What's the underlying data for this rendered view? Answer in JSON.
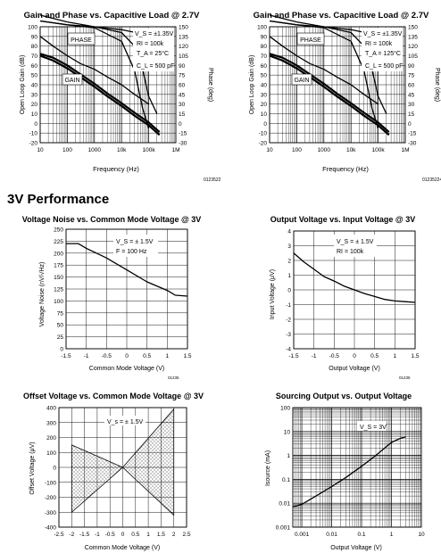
{
  "section_heading": "3V Performance",
  "chart_data": [
    {
      "type": "line",
      "title": "Gain and Phase vs. Capacitive Load @ 2.7V",
      "xlabel": "Frequency (Hz)",
      "ylabel": "Open Loop Gain (dB)",
      "y2label": "Phase (deg)",
      "xscale": "log",
      "xlim": [
        10,
        1000000
      ],
      "ylim": [
        -20,
        100
      ],
      "y2lim": [
        -30,
        150
      ],
      "x_ticks": [
        "10",
        "100",
        "1000",
        "10k",
        "100k",
        "1M"
      ],
      "y_ticks": [
        "100",
        "90",
        "80",
        "70",
        "60",
        "50",
        "40",
        "30",
        "20",
        "10",
        "0",
        "-10",
        "-20"
      ],
      "y2_ticks": [
        "150",
        "135",
        "120",
        "105",
        "90",
        "75",
        "60",
        "45",
        "30",
        "15",
        "0",
        "-15",
        "-30"
      ],
      "annotations": [
        "PHASE",
        "GAIN",
        "V_S = ±1.35V",
        "RI = 100k",
        "T_A = 25°C",
        "C_L = 500 pF"
      ],
      "figure_id": "01235223",
      "series": [
        {
          "x": [
            10,
            30,
            100,
            300,
            1000,
            3000,
            10000,
            30000,
            100000,
            250000
          ],
          "values": [
            72,
            68,
            60,
            51,
            41,
            31,
            21,
            11,
            1,
            -9
          ]
        },
        {
          "x": [
            10,
            30,
            100,
            300,
            1000,
            3000,
            10000,
            30000,
            100000,
            250000
          ],
          "values": [
            70,
            65,
            57,
            48,
            38,
            28,
            18,
            8,
            -2,
            -12
          ]
        },
        {
          "x": [
            10,
            30,
            100,
            300,
            1000,
            3000,
            10000,
            30000,
            100000
          ],
          "values": [
            90,
            80,
            70,
            62,
            56,
            48,
            40,
            30,
            20
          ]
        },
        {
          "x": [
            10,
            100,
            1000,
            10000,
            30000,
            60000,
            100000,
            200000
          ],
          "values": [
            106,
            102,
            100,
            94,
            80,
            55,
            28,
            10
          ]
        },
        {
          "x": [
            10,
            100,
            1000,
            10000,
            30000,
            60000,
            100000
          ],
          "values": [
            106,
            102,
            99,
            85,
            55,
            15,
            -5
          ]
        },
        {
          "x": [
            10,
            100,
            1000,
            10000,
            50000,
            100000,
            300000
          ],
          "values": [
            112,
            105,
            100,
            97,
            93,
            85,
            60
          ]
        }
      ]
    },
    {
      "type": "line",
      "title": "Gain and Phase vs. Capacitive Load @ 2.7V",
      "xlabel": "Frequency (Hz)",
      "ylabel": "Open Loop Gain (dB)",
      "y2label": "Phase (deg)",
      "xscale": "log",
      "xlim": [
        10,
        1000000
      ],
      "ylim": [
        -20,
        100
      ],
      "y2lim": [
        -30,
        150
      ],
      "x_ticks": [
        "10",
        "100",
        "1000",
        "10k",
        "100k",
        "1M"
      ],
      "y_ticks": [
        "100",
        "90",
        "80",
        "70",
        "60",
        "50",
        "40",
        "30",
        "20",
        "10",
        "0",
        "-10",
        "-20"
      ],
      "y2_ticks": [
        "150",
        "135",
        "120",
        "105",
        "90",
        "75",
        "60",
        "45",
        "30",
        "15",
        "0",
        "-15",
        "-30"
      ],
      "annotations": [
        "PHASE",
        "GAIN",
        "V_S = ±1.35V",
        "RI = 100k",
        "T_A = 125°C",
        "C_L = 500 pF"
      ],
      "figure_id": "01235224",
      "series": [
        {
          "x": [
            10,
            30,
            100,
            300,
            1000,
            3000,
            10000,
            30000,
            100000,
            250000
          ],
          "values": [
            72,
            68,
            60,
            51,
            41,
            31,
            21,
            11,
            1,
            -9
          ]
        },
        {
          "x": [
            10,
            30,
            100,
            300,
            1000,
            3000,
            10000,
            30000,
            100000,
            250000
          ],
          "values": [
            70,
            65,
            57,
            48,
            38,
            28,
            18,
            8,
            -2,
            -12
          ]
        },
        {
          "x": [
            10,
            30,
            100,
            300,
            1000,
            3000,
            10000,
            30000,
            100000
          ],
          "values": [
            90,
            80,
            70,
            62,
            56,
            48,
            40,
            30,
            20
          ]
        },
        {
          "x": [
            10,
            100,
            1000,
            10000,
            30000,
            60000,
            100000,
            200000
          ],
          "values": [
            106,
            102,
            100,
            94,
            80,
            55,
            28,
            10
          ]
        },
        {
          "x": [
            10,
            100,
            1000,
            10000,
            30000,
            60000,
            100000
          ],
          "values": [
            106,
            102,
            99,
            85,
            55,
            15,
            -5
          ]
        },
        {
          "x": [
            10,
            100,
            1000,
            10000,
            50000,
            100000,
            300000
          ],
          "values": [
            112,
            105,
            100,
            97,
            93,
            85,
            60
          ]
        }
      ]
    },
    {
      "type": "line",
      "title": "Voltage Noise vs. Common Mode Voltage @ 3V",
      "xlabel": "Common Mode Voltage (V)",
      "ylabel": "Voltage Noise (nV/√Hz)",
      "xlim": [
        -1.5,
        1.5
      ],
      "ylim": [
        0,
        250
      ],
      "x_ticks": [
        "-1.5",
        "-1",
        "-0.5",
        "0",
        "0.5",
        "1",
        "1.5"
      ],
      "y_ticks": [
        "250",
        "225",
        "200",
        "175",
        "150",
        "125",
        "100",
        "75",
        "50",
        "25",
        "0"
      ],
      "annotations": [
        "V_S = ± 1.5V",
        "F = 100 Hz"
      ],
      "figure_id": "01235",
      "series": [
        {
          "x": [
            -1.5,
            -1.2,
            -1.0,
            -0.5,
            0,
            0.5,
            1.0,
            1.2,
            1.5
          ],
          "values": [
            220,
            220,
            210,
            190,
            165,
            140,
            122,
            112,
            110
          ]
        }
      ]
    },
    {
      "type": "line",
      "title": "Output Voltage vs. Input Voltage @ 3V",
      "xlabel": "Output Voltage (V)",
      "ylabel": "Input Voltage (μV)",
      "xlim": [
        -1.5,
        1.5
      ],
      "ylim": [
        -4,
        4
      ],
      "x_ticks": [
        "-1.5",
        "-1",
        "-0.5",
        "0",
        "0.5",
        "1",
        "1.5"
      ],
      "y_ticks": [
        "4",
        "3",
        "2",
        "1",
        "0",
        "-1",
        "-2",
        "-3",
        "-4"
      ],
      "annotations": [
        "V_S = ± 1.5V",
        "RI = 100k"
      ],
      "figure_id": "01235",
      "series": [
        {
          "x": [
            -1.5,
            -1.25,
            -1.0,
            -0.75,
            -0.5,
            -0.25,
            0,
            0.25,
            0.5,
            0.75,
            1.0,
            1.25,
            1.5
          ],
          "values": [
            2.5,
            1.9,
            1.4,
            0.9,
            0.6,
            0.25,
            0,
            -0.25,
            -0.45,
            -0.65,
            -0.75,
            -0.8,
            -0.85
          ]
        }
      ]
    },
    {
      "type": "area",
      "title": "Offset Voltage vs. Common Mode Voltage @ 3V",
      "xlabel": "Common Mode Voltage (V)",
      "ylabel": "Offset Voltage (μV)",
      "xlim": [
        -2.5,
        2.5
      ],
      "ylim": [
        -400,
        400
      ],
      "x_ticks": [
        "-2.5",
        "-2",
        "-1.5",
        "-1",
        "-0.5",
        "0",
        "0.5",
        "1",
        "1.5",
        "2",
        "2.5"
      ],
      "y_ticks": [
        "400",
        "300",
        "200",
        "100",
        "0",
        "-100",
        "-200",
        "-300",
        "-400"
      ],
      "annotations": [
        "V_s = ± 1.5V"
      ],
      "series": [
        {
          "x": [
            -2,
            0,
            2
          ],
          "values": [
            150,
            0,
            -320
          ]
        },
        {
          "x": [
            -2,
            0,
            2
          ],
          "values": [
            -300,
            0,
            390
          ]
        }
      ]
    },
    {
      "type": "line",
      "title": "Sourcing Output vs. Output Voltage",
      "xlabel": "Output Voltage (V)",
      "ylabel": "Isource (mA)",
      "xscale": "log",
      "yscale": "log",
      "xlim": [
        0.0005,
        10
      ],
      "ylim": [
        0.001,
        100
      ],
      "x_ticks": [
        "0.001",
        "0.01",
        "0.1",
        "1",
        "10"
      ],
      "y_ticks": [
        "100",
        "10",
        "1",
        "0.1",
        "0.01",
        "0.001"
      ],
      "annotations": [
        "V_S = 3V"
      ],
      "series": [
        {
          "x": [
            0.0005,
            0.001,
            0.003,
            0.01,
            0.03,
            0.1,
            0.3,
            1,
            2,
            3
          ],
          "values": [
            0.007,
            0.009,
            0.02,
            0.05,
            0.12,
            0.35,
            1.0,
            3.5,
            5.2,
            6.0
          ]
        }
      ]
    }
  ]
}
